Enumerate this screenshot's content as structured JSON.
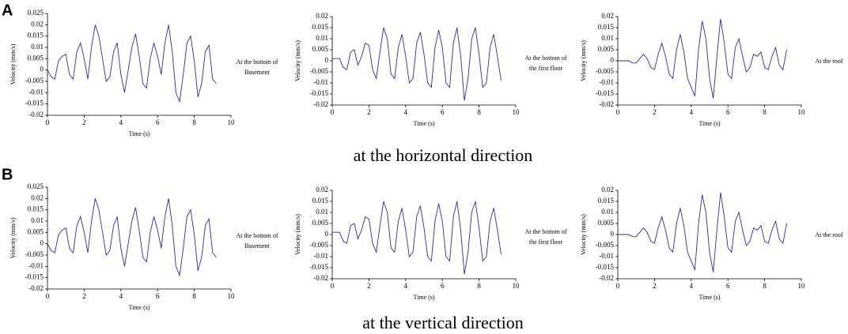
{
  "panels": [
    {
      "label": "A",
      "caption": "at the horizontal direction"
    },
    {
      "label": "B",
      "caption": "at the vertical direction"
    }
  ],
  "chart_data": [
    {
      "type": "line",
      "annotation": [
        "At the bottom of",
        "Basement"
      ],
      "x_label": "Time (s)",
      "y_label": "Velocity (mm/s)",
      "xlim": [
        0,
        10
      ],
      "xticks": [
        0,
        2,
        4,
        6,
        8,
        10
      ],
      "ylim": [
        -0.02,
        0.025
      ],
      "yticks": [
        -0.02,
        -0.015,
        -0.01,
        -0.005,
        0,
        0.005,
        0.01,
        0.015,
        0.02,
        0.025
      ],
      "color": "#2b2b9e",
      "x": [
        0,
        0.2,
        0.4,
        0.6,
        0.8,
        1,
        1.2,
        1.4,
        1.6,
        1.8,
        2,
        2.2,
        2.4,
        2.6,
        2.8,
        3,
        3.2,
        3.4,
        3.6,
        3.8,
        4,
        4.2,
        4.4,
        4.6,
        4.8,
        5,
        5.2,
        5.4,
        5.6,
        5.8,
        6,
        6.2,
        6.4,
        6.6,
        6.8,
        7,
        7.2,
        7.4,
        7.6,
        7.8,
        8,
        8.2,
        8.4,
        8.6,
        8.8,
        9,
        9.2
      ],
      "values": [
        0,
        -0.003,
        -0.004,
        0.004,
        0.006,
        0.007,
        -0.002,
        -0.004,
        0.008,
        0.012,
        0.005,
        -0.004,
        0.01,
        0.02,
        0.015,
        0.005,
        -0.005,
        -0.003,
        0.008,
        0.012,
        -0.002,
        -0.01,
        0,
        0.01,
        0.016,
        0.006,
        -0.006,
        -0.008,
        0.005,
        0.012,
        0.006,
        -0.002,
        0.012,
        0.02,
        0.008,
        -0.01,
        -0.014,
        -0.002,
        0.012,
        0.015,
        0.004,
        -0.012,
        -0.006,
        0.008,
        0.011,
        -0.004,
        -0.006
      ]
    },
    {
      "type": "line",
      "annotation": [
        "At the bottom of",
        "the first floor"
      ],
      "x_label": "Time (s)",
      "y_label": "Velocity (mm/s)",
      "xlim": [
        0,
        10
      ],
      "xticks": [
        0,
        2,
        4,
        6,
        8,
        10
      ],
      "ylim": [
        -0.02,
        0.02
      ],
      "yticks": [
        -0.02,
        -0.015,
        -0.01,
        -0.005,
        0,
        0.005,
        0.01,
        0.015,
        0.02
      ],
      "color": "#2b2b9e",
      "x": [
        0,
        0.2,
        0.4,
        0.6,
        0.8,
        1,
        1.2,
        1.4,
        1.6,
        1.8,
        2,
        2.2,
        2.4,
        2.6,
        2.8,
        3,
        3.2,
        3.4,
        3.6,
        3.8,
        4,
        4.2,
        4.4,
        4.6,
        4.8,
        5,
        5.2,
        5.4,
        5.6,
        5.8,
        6,
        6.2,
        6.4,
        6.6,
        6.8,
        7,
        7.2,
        7.4,
        7.6,
        7.8,
        8,
        8.2,
        8.4,
        8.6,
        8.8,
        9,
        9.2
      ],
      "values": [
        0.001,
        0.001,
        0.001,
        -0.003,
        -0.004,
        0.004,
        0.005,
        -0.002,
        0.002,
        0.008,
        0.007,
        -0.004,
        -0.008,
        0.004,
        0.015,
        0.01,
        -0.006,
        -0.008,
        0.006,
        0.012,
        0.002,
        -0.01,
        -0.008,
        0.008,
        0.013,
        0.003,
        -0.01,
        -0.012,
        0.006,
        0.014,
        0.006,
        -0.01,
        -0.012,
        0.008,
        0.015,
        0.002,
        -0.018,
        -0.008,
        0.01,
        0.015,
        0.003,
        -0.012,
        -0.01,
        0.006,
        0.012,
        0.002,
        -0.009
      ]
    },
    {
      "type": "line",
      "annotation": [
        "At the roof"
      ],
      "x_label": "Time (s)",
      "y_label": "Velocity (mm/s)",
      "xlim": [
        0,
        10
      ],
      "xticks": [
        0,
        2,
        4,
        6,
        8,
        10
      ],
      "ylim": [
        -0.02,
        0.02
      ],
      "yticks": [
        -0.02,
        -0.015,
        -0.01,
        -0.005,
        0,
        0.005,
        0.01,
        0.015,
        0.02
      ],
      "color": "#2b2b9e",
      "x": [
        0,
        0.2,
        0.4,
        0.6,
        0.8,
        1,
        1.2,
        1.4,
        1.6,
        1.8,
        2,
        2.2,
        2.4,
        2.6,
        2.8,
        3,
        3.2,
        3.4,
        3.6,
        3.8,
        4,
        4.2,
        4.4,
        4.6,
        4.8,
        5,
        5.2,
        5.4,
        5.6,
        5.8,
        6,
        6.2,
        6.4,
        6.6,
        6.8,
        7,
        7.2,
        7.4,
        7.6,
        7.8,
        8,
        8.2,
        8.4,
        8.6,
        8.8,
        9,
        9.2
      ],
      "values": [
        0,
        0,
        0,
        0,
        -0.001,
        -0.001,
        0.001,
        0.003,
        0.001,
        -0.003,
        -0.004,
        0.003,
        0.008,
        0.002,
        -0.006,
        -0.008,
        0.005,
        0.012,
        0.004,
        -0.008,
        -0.012,
        -0.016,
        0.005,
        0.018,
        0.01,
        -0.008,
        -0.017,
        0.002,
        0.019,
        0.008,
        -0.006,
        -0.008,
        0.006,
        0.01,
        0.002,
        -0.005,
        -0.003,
        0.003,
        0.002,
        0.004,
        -0.003,
        -0.004,
        0.002,
        0.006,
        -0.002,
        -0.004,
        0.005
      ]
    },
    {
      "type": "line",
      "annotation": [
        "At the bottom of",
        "Basement"
      ],
      "x_label": "Time (s)",
      "y_label": "Velocity (mm/s)",
      "xlim": [
        0,
        10
      ],
      "xticks": [
        0,
        2,
        4,
        6,
        8,
        10
      ],
      "ylim": [
        -0.02,
        0.025
      ],
      "yticks": [
        -0.02,
        -0.015,
        -0.01,
        -0.005,
        0,
        0.005,
        0.01,
        0.015,
        0.02,
        0.025
      ],
      "color": "#2b2b9e",
      "x": [
        0,
        0.2,
        0.4,
        0.6,
        0.8,
        1,
        1.2,
        1.4,
        1.6,
        1.8,
        2,
        2.2,
        2.4,
        2.6,
        2.8,
        3,
        3.2,
        3.4,
        3.6,
        3.8,
        4,
        4.2,
        4.4,
        4.6,
        4.8,
        5,
        5.2,
        5.4,
        5.6,
        5.8,
        6,
        6.2,
        6.4,
        6.6,
        6.8,
        7,
        7.2,
        7.4,
        7.6,
        7.8,
        8,
        8.2,
        8.4,
        8.6,
        8.8,
        9,
        9.2
      ],
      "values": [
        0,
        -0.003,
        -0.004,
        0.004,
        0.006,
        0.007,
        -0.002,
        -0.004,
        0.008,
        0.012,
        0.005,
        -0.004,
        0.01,
        0.02,
        0.015,
        0.005,
        -0.005,
        -0.003,
        0.008,
        0.012,
        -0.002,
        -0.01,
        0,
        0.01,
        0.016,
        0.006,
        -0.006,
        -0.008,
        0.005,
        0.012,
        0.006,
        -0.002,
        0.012,
        0.02,
        0.008,
        -0.01,
        -0.014,
        -0.002,
        0.012,
        0.015,
        0.004,
        -0.012,
        -0.006,
        0.008,
        0.011,
        -0.004,
        -0.006
      ]
    },
    {
      "type": "line",
      "annotation": [
        "At the bottom of",
        "the first floor"
      ],
      "x_label": "Time (s)",
      "y_label": "Velocity (mm/s)",
      "xlim": [
        0,
        10
      ],
      "xticks": [
        0,
        2,
        4,
        6,
        8,
        10
      ],
      "ylim": [
        -0.02,
        0.02
      ],
      "yticks": [
        -0.02,
        -0.015,
        -0.01,
        -0.005,
        0,
        0.005,
        0.01,
        0.015,
        0.02
      ],
      "color": "#2b2b9e",
      "x": [
        0,
        0.2,
        0.4,
        0.6,
        0.8,
        1,
        1.2,
        1.4,
        1.6,
        1.8,
        2,
        2.2,
        2.4,
        2.6,
        2.8,
        3,
        3.2,
        3.4,
        3.6,
        3.8,
        4,
        4.2,
        4.4,
        4.6,
        4.8,
        5,
        5.2,
        5.4,
        5.6,
        5.8,
        6,
        6.2,
        6.4,
        6.6,
        6.8,
        7,
        7.2,
        7.4,
        7.6,
        7.8,
        8,
        8.2,
        8.4,
        8.6,
        8.8,
        9,
        9.2
      ],
      "values": [
        0.001,
        0.001,
        0.001,
        -0.003,
        -0.004,
        0.004,
        0.005,
        -0.002,
        0.002,
        0.008,
        0.007,
        -0.004,
        -0.008,
        0.004,
        0.015,
        0.01,
        -0.006,
        -0.008,
        0.006,
        0.012,
        0.002,
        -0.01,
        -0.008,
        0.008,
        0.013,
        0.003,
        -0.01,
        -0.012,
        0.006,
        0.014,
        0.006,
        -0.01,
        -0.012,
        0.008,
        0.015,
        0.002,
        -0.018,
        -0.008,
        0.01,
        0.015,
        0.003,
        -0.012,
        -0.01,
        0.006,
        0.012,
        0.002,
        -0.009
      ]
    },
    {
      "type": "line",
      "annotation": [
        "At the roof"
      ],
      "x_label": "Time (s)",
      "y_label": "Velocity (mm/s)",
      "xlim": [
        0,
        10
      ],
      "xticks": [
        0,
        2,
        4,
        6,
        8,
        10
      ],
      "ylim": [
        -0.02,
        0.02
      ],
      "yticks": [
        -0.02,
        -0.015,
        -0.01,
        -0.005,
        0,
        0.005,
        0.01,
        0.015,
        0.02
      ],
      "color": "#2b2b9e",
      "x": [
        0,
        0.2,
        0.4,
        0.6,
        0.8,
        1,
        1.2,
        1.4,
        1.6,
        1.8,
        2,
        2.2,
        2.4,
        2.6,
        2.8,
        3,
        3.2,
        3.4,
        3.6,
        3.8,
        4,
        4.2,
        4.4,
        4.6,
        4.8,
        5,
        5.2,
        5.4,
        5.6,
        5.8,
        6,
        6.2,
        6.4,
        6.6,
        6.8,
        7,
        7.2,
        7.4,
        7.6,
        7.8,
        8,
        8.2,
        8.4,
        8.6,
        8.8,
        9,
        9.2
      ],
      "values": [
        0,
        0,
        0,
        0,
        -0.001,
        -0.001,
        0.001,
        0.003,
        0.001,
        -0.003,
        -0.004,
        0.003,
        0.008,
        0.002,
        -0.006,
        -0.008,
        0.005,
        0.012,
        0.004,
        -0.008,
        -0.012,
        -0.016,
        0.005,
        0.018,
        0.01,
        -0.008,
        -0.017,
        0.002,
        0.019,
        0.008,
        -0.006,
        -0.008,
        0.006,
        0.01,
        0.002,
        -0.005,
        -0.003,
        0.003,
        0.002,
        0.004,
        -0.003,
        -0.004,
        0.002,
        0.006,
        -0.002,
        -0.004,
        0.005
      ]
    }
  ]
}
